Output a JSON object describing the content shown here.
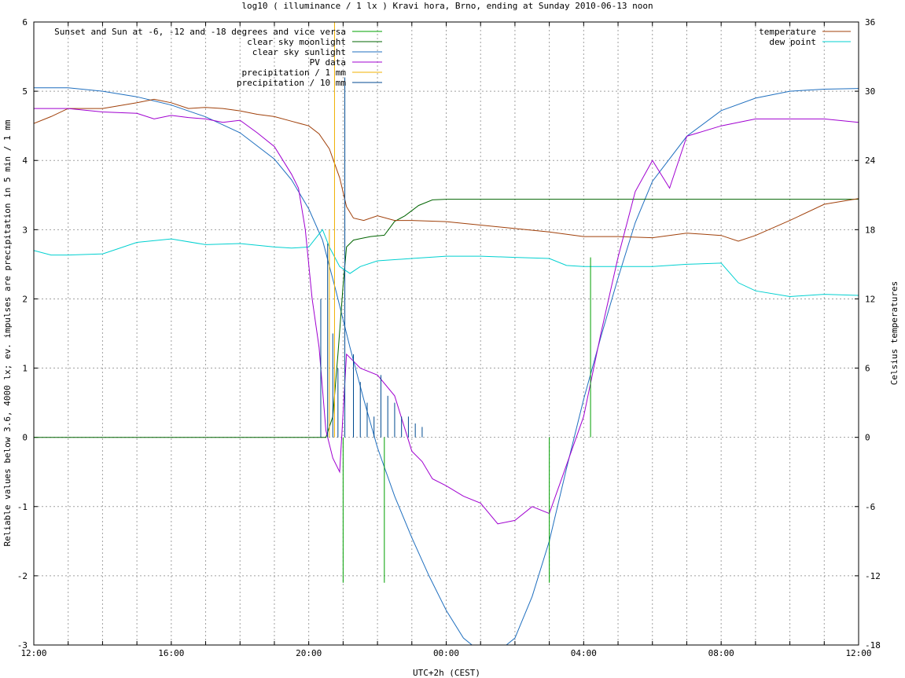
{
  "chart_data": {
    "type": "line",
    "title": "log10 ( illuminance / 1 lx ) Kravi hora, Brno, ending at Sunday 2010-06-13 noon",
    "xlabel": "UTC+2h (CEST)",
    "ylabel": "Reliable values below 3.6, 4000 lx; ev. impulses are precipitation in 5 min / 1 mm",
    "y2label": "Celsius temperatures",
    "xlim": [
      0,
      24
    ],
    "ylim": [
      -3,
      6
    ],
    "y2lim": [
      -18,
      36
    ],
    "x_ticks": [
      {
        "v": 0,
        "label": "12:00"
      },
      {
        "v": 4,
        "label": "16:00"
      },
      {
        "v": 8,
        "label": "20:00"
      },
      {
        "v": 12,
        "label": "00:00"
      },
      {
        "v": 16,
        "label": "04:00"
      },
      {
        "v": 20,
        "label": "08:00"
      },
      {
        "v": 24,
        "label": "12:00"
      }
    ],
    "y_ticks": [
      {
        "v": -3,
        "label": "-3"
      },
      {
        "v": -2,
        "label": "-2"
      },
      {
        "v": -1,
        "label": "-1"
      },
      {
        "v": 0,
        "label": "0"
      },
      {
        "v": 1,
        "label": "1"
      },
      {
        "v": 2,
        "label": "2"
      },
      {
        "v": 3,
        "label": "3"
      },
      {
        "v": 4,
        "label": "4"
      },
      {
        "v": 5,
        "label": "5"
      },
      {
        "v": 6,
        "label": "6"
      }
    ],
    "y2_ticks": [
      {
        "v": -18,
        "label": "-18"
      },
      {
        "v": -12,
        "label": "-12"
      },
      {
        "v": -6,
        "label": "-6"
      },
      {
        "v": 0,
        "label": "0"
      },
      {
        "v": 6,
        "label": "6"
      },
      {
        "v": 12,
        "label": "12"
      },
      {
        "v": 18,
        "label": "18"
      },
      {
        "v": 24,
        "label": "24"
      },
      {
        "v": 30,
        "label": "30"
      },
      {
        "v": 36,
        "label": "36"
      }
    ],
    "grid": true,
    "legend_left": [
      {
        "name": "Sunset and Sun at -6, -12 and -18 degrees and vice versa",
        "color": "#00a000"
      },
      {
        "name": "clear sky moonlight",
        "color": "#006400"
      },
      {
        "name": "clear sky sunlight",
        "color": "#1f6fbf"
      },
      {
        "name": "PV data",
        "color": "#a000d0"
      },
      {
        "name": "precipitation / 1 mm",
        "color": "#f0b000"
      },
      {
        "name": "precipitation / 10 mm",
        "color": "#004a90"
      }
    ],
    "legend_right": [
      {
        "name": "temperature",
        "color": "#a0400a"
      },
      {
        "name": "dew point",
        "color": "#00d0d0"
      }
    ],
    "series": [
      {
        "name": "clear sky sunlight",
        "axis": "y",
        "color": "#1f6fbf",
        "x": [
          0,
          1,
          2,
          3,
          4,
          5,
          6,
          7,
          7.5,
          8,
          8.4,
          8.8,
          9.2,
          9.6,
          10,
          10.5,
          11,
          11.5,
          12,
          12.5,
          13,
          13.5,
          14,
          14.5,
          15,
          15.5,
          16,
          16.5,
          17,
          17.5,
          18,
          19,
          20,
          21,
          22,
          23,
          24
        ],
        "values": [
          5.05,
          5.05,
          5.0,
          4.92,
          4.8,
          4.63,
          4.4,
          4.02,
          3.72,
          3.3,
          2.85,
          2.1,
          1.3,
          0.55,
          -0.15,
          -0.85,
          -1.45,
          -2.0,
          -2.5,
          -2.9,
          -3.1,
          -3.1,
          -2.9,
          -2.3,
          -1.5,
          -0.45,
          0.55,
          1.45,
          2.3,
          3.1,
          3.7,
          4.35,
          4.72,
          4.9,
          5.0,
          5.03,
          5.04
        ]
      },
      {
        "name": "clear sky moonlight",
        "axis": "y",
        "color": "#006400",
        "x": [
          0,
          8.5,
          8.7,
          8.85,
          9.0,
          9.1,
          9.3,
          9.5,
          9.8,
          10.2,
          10.5,
          10.8,
          11.2,
          11.6,
          12,
          14,
          16,
          18,
          20,
          22,
          24
        ],
        "values": [
          0,
          0,
          0.3,
          1.2,
          2.2,
          2.75,
          2.85,
          2.87,
          2.9,
          2.92,
          3.12,
          3.2,
          3.35,
          3.43,
          3.44,
          3.44,
          3.44,
          3.44,
          3.44,
          3.44,
          3.44
        ]
      },
      {
        "name": "temperature",
        "axis": "y2",
        "color": "#a0400a",
        "x": [
          0,
          0.5,
          1,
          2,
          3,
          3.5,
          4,
          4.5,
          5,
          5.5,
          6,
          6.5,
          7,
          7.5,
          8,
          8.3,
          8.6,
          8.9,
          9.1,
          9.3,
          9.6,
          10,
          10.5,
          11,
          12,
          13,
          14,
          15,
          16,
          17,
          18,
          19,
          20,
          20.5,
          21,
          22,
          23,
          24
        ],
        "values": [
          27.2,
          27.8,
          28.5,
          28.5,
          29,
          29.3,
          29,
          28.5,
          28.6,
          28.5,
          28.3,
          28.0,
          27.8,
          27.4,
          27.0,
          26.3,
          25.0,
          22.5,
          20.0,
          19.0,
          18.8,
          19.2,
          18.8,
          18.8,
          18.7,
          18.4,
          18.1,
          17.8,
          17.4,
          17.4,
          17.3,
          17.7,
          17.5,
          17.0,
          17.5,
          18.8,
          20.2,
          20.7
        ]
      },
      {
        "name": "dew point",
        "axis": "y2",
        "color": "#00d0d0",
        "x": [
          0,
          0.5,
          1,
          2,
          3,
          4,
          5,
          6,
          7,
          7.5,
          8,
          8.4,
          8.6,
          8.9,
          9.2,
          9.5,
          10,
          11,
          12,
          13,
          14,
          15,
          15.5,
          16,
          17,
          18,
          19,
          20,
          20.5,
          21,
          22,
          23,
          24
        ],
        "values": [
          16.2,
          15.8,
          15.8,
          15.9,
          16.9,
          17.2,
          16.7,
          16.8,
          16.5,
          16.4,
          16.5,
          18.0,
          16.5,
          14.8,
          14.2,
          14.8,
          15.3,
          15.5,
          15.7,
          15.7,
          15.6,
          15.5,
          14.9,
          14.8,
          14.8,
          14.8,
          15.0,
          15.1,
          13.4,
          12.7,
          12.2,
          12.4,
          12.3
        ]
      },
      {
        "name": "PV data",
        "axis": "y",
        "color": "#a000d0",
        "x": [
          0,
          1,
          2,
          3,
          3.5,
          4,
          4.5,
          5,
          5.5,
          6,
          6.5,
          7,
          7.5,
          7.7,
          7.9,
          8.1,
          8.3,
          8.5,
          8.7,
          8.9,
          9.1,
          9.3,
          9.5,
          10,
          10.5,
          11,
          11.3,
          11.6,
          12,
          12.5,
          13,
          13.5,
          14,
          14.5,
          15,
          15.5,
          16,
          16.5,
          17,
          17.5,
          18,
          18.5,
          19,
          20,
          21,
          22,
          23,
          24
        ],
        "values": [
          4.75,
          4.75,
          4.7,
          4.68,
          4.6,
          4.65,
          4.62,
          4.6,
          4.55,
          4.58,
          4.4,
          4.2,
          3.8,
          3.6,
          3.0,
          2.0,
          1.3,
          0.1,
          -0.3,
          -0.5,
          1.2,
          1.1,
          1.0,
          0.9,
          0.6,
          -0.2,
          -0.35,
          -0.6,
          -0.7,
          -0.85,
          -0.95,
          -1.25,
          -1.2,
          -1.0,
          -1.1,
          -0.4,
          0.3,
          1.5,
          2.6,
          3.55,
          4.0,
          3.6,
          4.35,
          4.5,
          4.6,
          4.6,
          4.6,
          4.55
        ]
      },
      {
        "name": "Sunset and Sun at -6, -12 and -18 degrees and vice versa",
        "axis": "y",
        "color": "#00a000",
        "type": "impulse",
        "x": [
          9.0,
          10.2,
          15.0,
          16.2
        ],
        "values": [
          -2.1,
          -2.1,
          -2.1,
          2.6
        ]
      },
      {
        "name": "precipitation / 1 mm",
        "axis": "y",
        "color": "#f0b000",
        "type": "impulse",
        "x": [
          8.6,
          8.75
        ],
        "values": [
          3.0,
          6.0
        ]
      },
      {
        "name": "precipitation / 10 mm",
        "axis": "y",
        "color": "#004a90",
        "type": "impulse",
        "x": [
          8.35,
          8.55,
          8.7,
          8.85,
          9.05,
          9.3,
          9.5,
          9.7,
          9.9,
          10.1,
          10.3,
          10.5,
          10.7,
          10.9,
          11.1,
          11.3
        ],
        "values": [
          2.0,
          2.8,
          1.5,
          1.0,
          5.2,
          1.2,
          0.8,
          0.5,
          0.3,
          0.9,
          0.6,
          0.5,
          0.3,
          0.3,
          0.2,
          0.15
        ]
      }
    ]
  }
}
